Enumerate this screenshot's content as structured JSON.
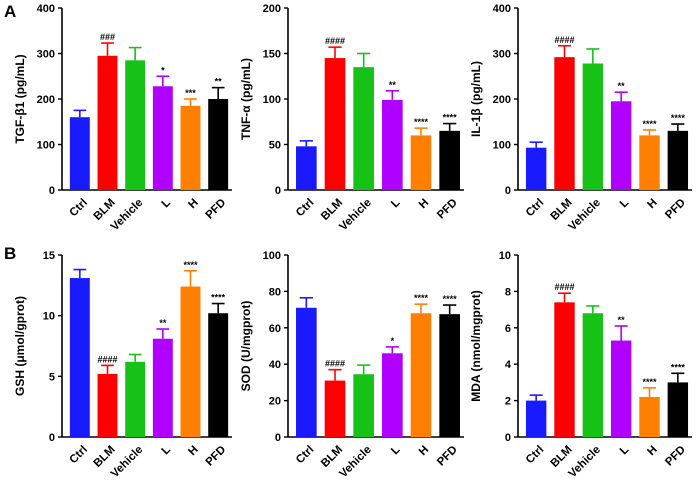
{
  "panel_labels": [
    "A",
    "B"
  ],
  "colors": {
    "axis": "#000000",
    "groups": [
      "#1a1aff",
      "#ff0000",
      "#17c217",
      "#b000ff",
      "#ff8000",
      "#000000"
    ]
  },
  "chart_data": [
    {
      "type": "bar",
      "categories": [
        "Ctrl",
        "BLM",
        "Vehicle",
        "L",
        "H",
        "PFD"
      ],
      "values": [
        160,
        295,
        285,
        228,
        185,
        200
      ],
      "errors": [
        15,
        28,
        28,
        22,
        15,
        25
      ],
      "significance": [
        "",
        "###",
        "",
        "*",
        "***",
        "**"
      ],
      "ylabel": "TGF-β1 (pg/mL)",
      "ylim": [
        0,
        400
      ],
      "yticks": [
        0,
        100,
        200,
        300,
        400
      ]
    },
    {
      "type": "bar",
      "categories": [
        "Ctrl",
        "BLM",
        "Vehicle",
        "L",
        "H",
        "PFD"
      ],
      "values": [
        48,
        145,
        135,
        99,
        60,
        65
      ],
      "errors": [
        6,
        12,
        15,
        10,
        8,
        8
      ],
      "significance": [
        "",
        "####",
        "",
        "**",
        "****",
        "****"
      ],
      "ylabel": "TNF-α (pg/mL)",
      "ylim": [
        0,
        200
      ],
      "yticks": [
        0,
        50,
        100,
        150,
        200
      ]
    },
    {
      "type": "bar",
      "categories": [
        "Ctrl",
        "BLM",
        "Vehicle",
        "L",
        "H",
        "PFD"
      ],
      "values": [
        93,
        292,
        278,
        195,
        120,
        130
      ],
      "errors": [
        12,
        25,
        32,
        20,
        12,
        15
      ],
      "significance": [
        "",
        "####",
        "",
        "**",
        "****",
        "****"
      ],
      "ylabel": "IL-1β (pg/mL)",
      "ylim": [
        0,
        400
      ],
      "yticks": [
        0,
        100,
        200,
        300,
        400
      ]
    },
    {
      "type": "bar",
      "categories": [
        "Ctrl",
        "BLM",
        "Vehicle",
        "L",
        "H",
        "PFD"
      ],
      "values": [
        13.1,
        5.2,
        6.2,
        8.1,
        12.4,
        10.2
      ],
      "errors": [
        0.7,
        0.7,
        0.6,
        0.8,
        1.3,
        0.8
      ],
      "significance": [
        "",
        "####",
        "",
        "**",
        "****",
        "****"
      ],
      "ylabel": "GSH (μmol/gprot)",
      "ylim": [
        0,
        15
      ],
      "yticks": [
        0,
        5,
        10,
        15
      ]
    },
    {
      "type": "bar",
      "categories": [
        "Ctrl",
        "BLM",
        "Vehicle",
        "L",
        "H",
        "PFD"
      ],
      "values": [
        71,
        31,
        34.5,
        46,
        68,
        67.5
      ],
      "errors": [
        5.5,
        6,
        5,
        3.5,
        5,
        5
      ],
      "significance": [
        "",
        "####",
        "",
        "*",
        "****",
        "****"
      ],
      "ylabel": "SOD (U/mgprot)",
      "ylim": [
        0,
        100
      ],
      "yticks": [
        0,
        20,
        40,
        60,
        80,
        100
      ]
    },
    {
      "type": "bar",
      "categories": [
        "Ctrl",
        "BLM",
        "Vehicle",
        "L",
        "H",
        "PFD"
      ],
      "values": [
        2.0,
        7.4,
        6.8,
        5.3,
        2.2,
        3.0
      ],
      "errors": [
        0.3,
        0.5,
        0.4,
        0.8,
        0.5,
        0.5
      ],
      "significance": [
        "",
        "####",
        "",
        "**",
        "****",
        "****"
      ],
      "ylabel": "MDA (nmol/mgprot)",
      "ylim": [
        0,
        10
      ],
      "yticks": [
        0,
        2,
        4,
        6,
        8,
        10
      ]
    }
  ]
}
